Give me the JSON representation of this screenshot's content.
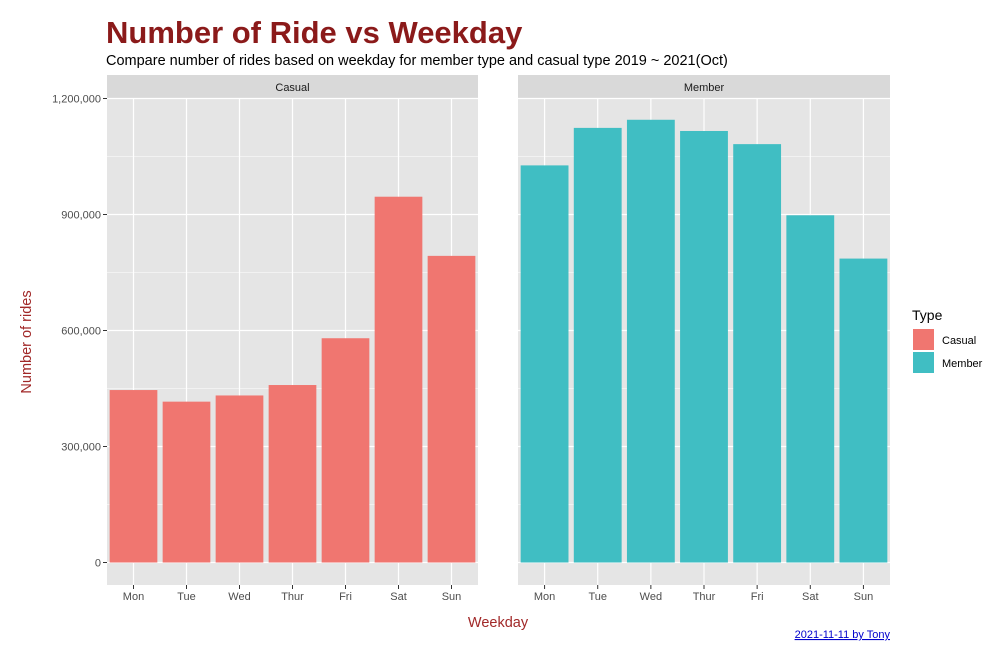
{
  "colors": {
    "title": "#8b1a1a",
    "axis_title": "#a12828",
    "panel_bg": "#e5e5e5",
    "strip_bg": "#d9d9d9",
    "grid": "#ffffff",
    "casual": "#f07670",
    "member": "#40bec3",
    "caption_link": "#0000cc"
  },
  "chart_data": {
    "type": "bar",
    "title": "Number of Ride vs Weekday",
    "subtitle": "Compare number of rides based on weekday for member type and casual type 2019 ~ 2021(Oct)",
    "xlabel": "Weekday",
    "ylabel": "Number of rides",
    "categories": [
      "Mon",
      "Tue",
      "Wed",
      "Thur",
      "Fri",
      "Sat",
      "Sun"
    ],
    "ylim": [
      0,
      1200000
    ],
    "yticks": [
      0,
      300000,
      600000,
      900000,
      1200000
    ],
    "ytick_labels": [
      "0",
      "300,000",
      "600,000",
      "900,000",
      "1,200,000"
    ],
    "grid": true,
    "legend": {
      "title": "Type",
      "position": "right",
      "entries": [
        "Casual",
        "Member"
      ]
    },
    "facets": [
      {
        "name": "Casual",
        "values": [
          446000,
          416000,
          432000,
          459000,
          580000,
          946000,
          793000
        ]
      },
      {
        "name": "Member",
        "values": [
          1027000,
          1124000,
          1145000,
          1116000,
          1082000,
          898000,
          786000
        ]
      }
    ],
    "caption": "2021-11-11 by Tony"
  }
}
